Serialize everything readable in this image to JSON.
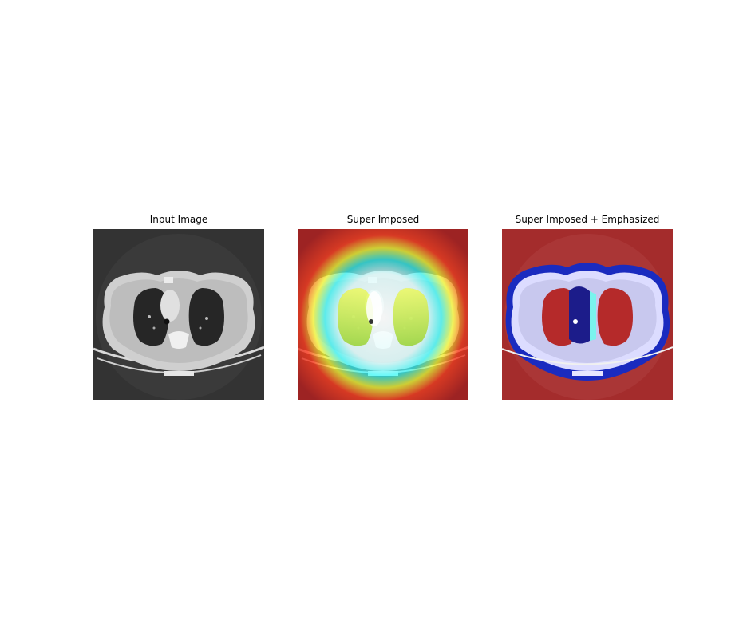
{
  "figure": {
    "panels": [
      {
        "title": "Input Image",
        "image": "chest-ct-scan-grayscale"
      },
      {
        "title": "Super Imposed",
        "image": "chest-ct-heatmap-overlay"
      },
      {
        "title": "Super Imposed + Emphasized",
        "image": "chest-ct-emphasized-heatmap-overlay"
      }
    ]
  }
}
